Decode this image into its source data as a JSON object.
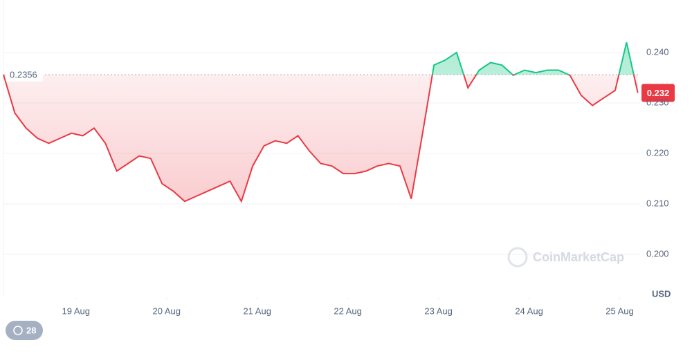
{
  "chart_data": {
    "type": "line",
    "values": [
      0.2356,
      0.228,
      0.225,
      0.223,
      0.222,
      0.223,
      0.224,
      0.2235,
      0.225,
      0.222,
      0.2165,
      0.218,
      0.2195,
      0.219,
      0.214,
      0.2125,
      0.2105,
      0.2115,
      0.2125,
      0.2135,
      0.2145,
      0.2105,
      0.2175,
      0.2215,
      0.2225,
      0.222,
      0.2235,
      0.2205,
      0.218,
      0.2175,
      0.216,
      0.216,
      0.2165,
      0.2175,
      0.218,
      0.2175,
      0.211,
      0.224,
      0.2375,
      0.2385,
      0.24,
      0.233,
      0.2365,
      0.238,
      0.2375,
      0.2355,
      0.2365,
      0.236,
      0.2365,
      0.2365,
      0.2355,
      0.2315,
      0.2295,
      0.231,
      0.2325,
      0.242,
      0.232
    ],
    "color_up": "#16c784",
    "color_down": "#ea3943",
    "reference": {
      "value": 0.2356,
      "label": "0.2356"
    },
    "last_price_label": "0.232",
    "xlim": [
      0,
      56.2
    ],
    "xticks": [
      {
        "value": 6.4,
        "label": "19 Aug"
      },
      {
        "value": 14.4,
        "label": "20 Aug"
      },
      {
        "value": 22.4,
        "label": "21 Aug"
      },
      {
        "value": 30.4,
        "label": "22 Aug"
      },
      {
        "value": 38.4,
        "label": "23 Aug"
      },
      {
        "value": 46.4,
        "label": "24 Aug"
      },
      {
        "value": 54.4,
        "label": "25 Aug"
      }
    ],
    "ylim": [
      0.1915,
      0.2504
    ],
    "yticks": [
      {
        "value": 0.2,
        "label": "0.200"
      },
      {
        "value": 0.21,
        "label": "0.210"
      },
      {
        "value": 0.22,
        "label": "0.220"
      },
      {
        "value": 0.23,
        "label": "0.230"
      },
      {
        "value": 0.24,
        "label": "0.240"
      }
    ],
    "grid": true,
    "unit_label": "USD",
    "watermark": "CoinMarketCap",
    "badge": "28"
  }
}
